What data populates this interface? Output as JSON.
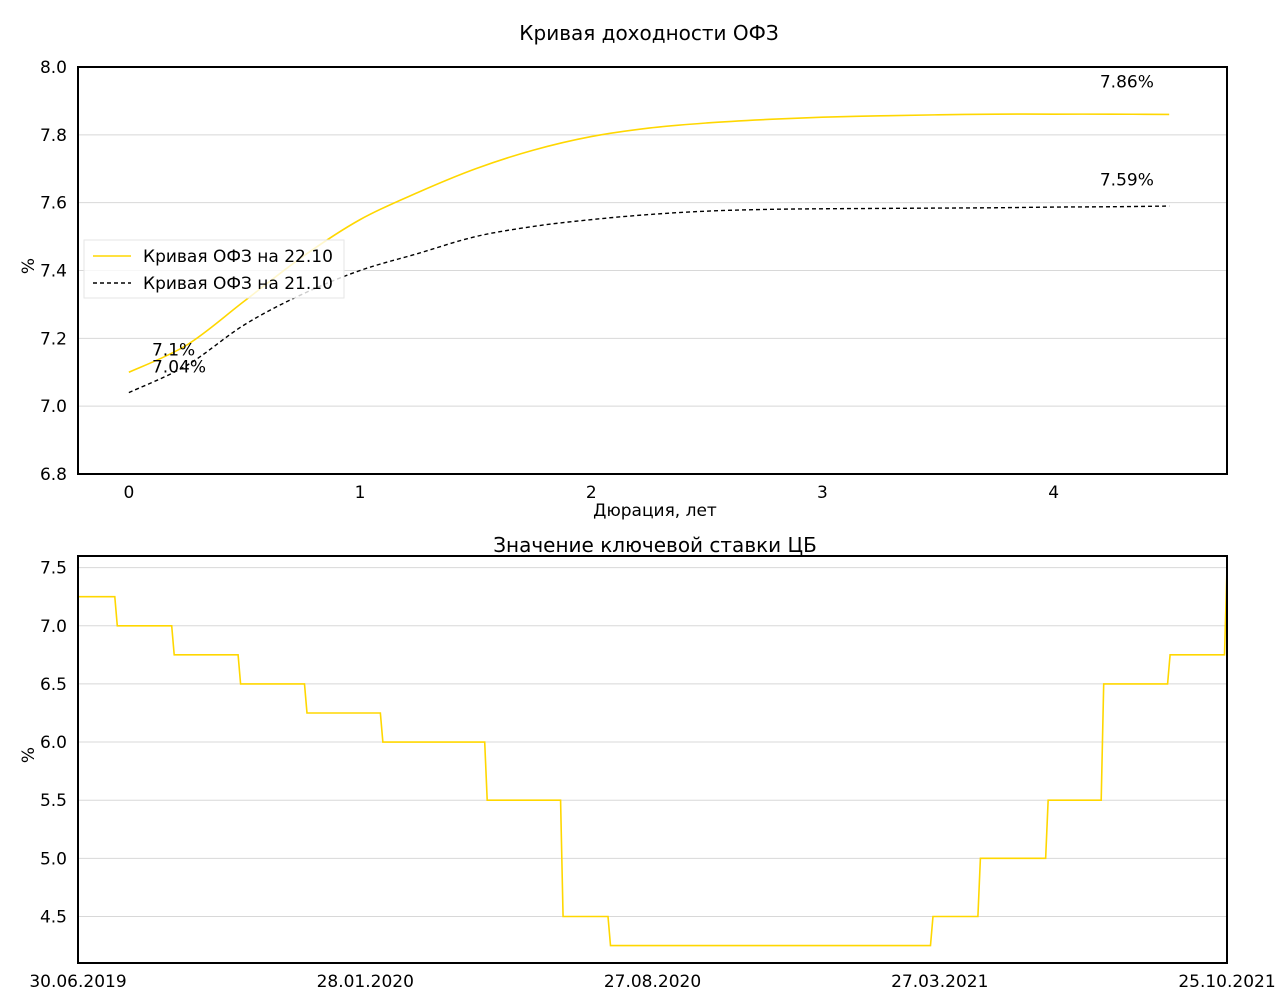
{
  "chart_data": [
    {
      "type": "line",
      "title": "Кривая доходности ОФЗ",
      "xlabel": "Дюрация, лет",
      "ylabel": "%",
      "xlim": [
        -0.22,
        4.75
      ],
      "ylim": [
        6.8,
        8.0
      ],
      "xticks": [
        "0",
        "1",
        "2",
        "3",
        "4"
      ],
      "yticks": [
        "6.8",
        "7.0",
        "7.2",
        "7.4",
        "7.6",
        "7.8",
        "8.0"
      ],
      "grid": "horizontal",
      "legend_position": "center-left",
      "series": [
        {
          "name": "Кривая ОФЗ на 22.10",
          "color": "#FFD700",
          "style": "solid",
          "x": [
            0,
            0.25,
            0.5,
            0.75,
            1.0,
            1.25,
            1.5,
            1.75,
            2.0,
            2.25,
            2.5,
            2.75,
            3.0,
            3.25,
            3.5,
            3.75,
            4.0,
            4.25,
            4.5
          ],
          "y": [
            7.1,
            7.18,
            7.31,
            7.44,
            7.55,
            7.63,
            7.7,
            7.755,
            7.795,
            7.82,
            7.835,
            7.845,
            7.852,
            7.856,
            7.859,
            7.861,
            7.861,
            7.861,
            7.86
          ]
        },
        {
          "name": "Кривая ОФЗ на 21.10",
          "color": "#000000",
          "style": "dashed",
          "x": [
            0,
            0.25,
            0.5,
            0.75,
            1.0,
            1.25,
            1.5,
            1.75,
            2.0,
            2.25,
            2.5,
            2.75,
            3.0,
            3.25,
            3.5,
            3.75,
            4.0,
            4.25,
            4.5
          ],
          "y": [
            7.04,
            7.12,
            7.24,
            7.33,
            7.4,
            7.45,
            7.5,
            7.53,
            7.55,
            7.565,
            7.575,
            7.58,
            7.582,
            7.583,
            7.584,
            7.585,
            7.587,
            7.588,
            7.59
          ]
        }
      ],
      "annotations": [
        {
          "text": "7.1%",
          "x": 0.1,
          "y": 7.15
        },
        {
          "text": "7.04%",
          "x": 0.1,
          "y": 7.1
        },
        {
          "text": "7.86%",
          "x": 4.2,
          "y": 7.94
        },
        {
          "text": "7.59%",
          "x": 4.2,
          "y": 7.65
        }
      ]
    },
    {
      "type": "line",
      "step": true,
      "title": "Значение ключевой ставки ЦБ",
      "xlabel": "",
      "ylabel": "%",
      "xlim": [
        "2019-06-30",
        "2021-10-25"
      ],
      "ylim": [
        4.1,
        7.6
      ],
      "xticks": [
        "30.06.2019",
        "28.01.2020",
        "27.08.2020",
        "27.03.2021",
        "25.10.2021"
      ],
      "yticks": [
        "4.5",
        "5.0",
        "5.5",
        "6.0",
        "6.5",
        "7.0",
        "7.5"
      ],
      "grid": "horizontal",
      "series": [
        {
          "color": "#FFD700",
          "x": [
            "2019-06-30",
            "2019-07-29",
            "2019-09-09",
            "2019-10-28",
            "2019-12-16",
            "2020-02-10",
            "2020-04-27",
            "2020-06-22",
            "2020-07-27",
            "2021-03-22",
            "2021-04-26",
            "2021-06-15",
            "2021-07-26",
            "2021-09-13",
            "2021-10-25"
          ],
          "y": [
            7.25,
            7.0,
            6.75,
            6.5,
            6.25,
            6.0,
            5.5,
            4.5,
            4.25,
            4.5,
            5.0,
            5.5,
            6.5,
            6.75,
            7.5
          ]
        }
      ]
    }
  ],
  "colors": {
    "accent": "#FFD700",
    "black": "#000000",
    "grid": "#d8d8d8"
  }
}
